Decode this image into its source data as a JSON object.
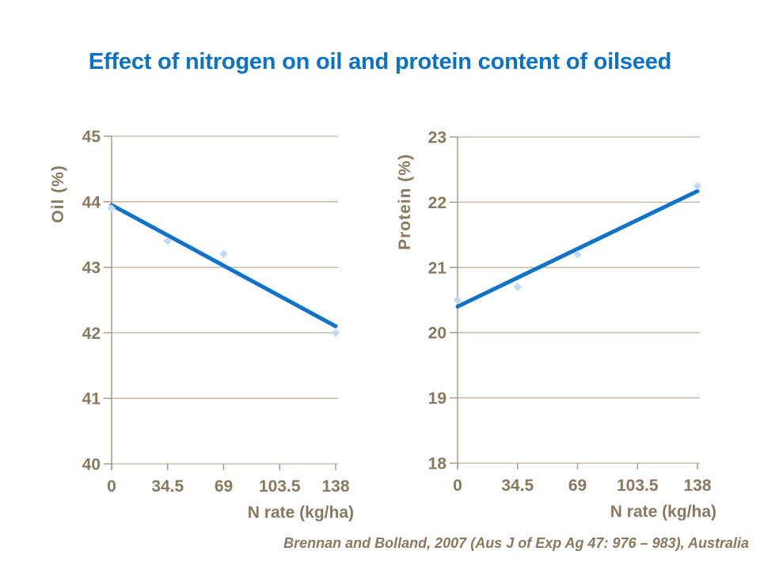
{
  "title": "Effect of nitrogen on oil and protein content of oilseed",
  "citation": "Brennan and Bolland, 2007 (Aus J of Exp Ag 47: 976 – 983), Australia",
  "colors": {
    "title": "#0b72c4",
    "trend_line": "#1173c8",
    "marker": "#c1daf2",
    "grid": "#bfb4a2",
    "axis": "#a2967e",
    "axis_text": "#87795f",
    "citation": "#87795f"
  },
  "chart_data": [
    {
      "type": "scatter",
      "title": "",
      "ylabel": "Oil (%)",
      "xlabel": "N rate (kg/ha)",
      "xlim": [
        0,
        138
      ],
      "ylim": [
        40,
        45
      ],
      "yticks": [
        40,
        41,
        42,
        43,
        44,
        45
      ],
      "xticks": [
        0,
        34.5,
        69,
        103.5,
        138
      ],
      "x_tick_labels": [
        "0",
        "34.5",
        "69",
        "103.5",
        "138"
      ],
      "grid": "horizontal",
      "legend": "none",
      "series": [
        {
          "name": "Oil",
          "points": [
            {
              "x": 0,
              "y": 43.9
            },
            {
              "x": 34.5,
              "y": 43.4
            },
            {
              "x": 69,
              "y": 43.2
            },
            {
              "x": 138,
              "y": 42.0
            }
          ]
        }
      ],
      "trendline": {
        "x": [
          0,
          138
        ],
        "y": [
          43.95,
          42.1
        ]
      }
    },
    {
      "type": "scatter",
      "title": "",
      "ylabel": "Protein (%)",
      "xlabel": "N rate (kg/ha)",
      "xlim": [
        0,
        138
      ],
      "ylim": [
        18,
        23
      ],
      "yticks": [
        18,
        19,
        20,
        21,
        22,
        23
      ],
      "xticks": [
        0,
        34.5,
        69,
        103.5,
        138
      ],
      "x_tick_labels": [
        "0",
        "34.5",
        "69",
        "103.5",
        "138"
      ],
      "grid": "horizontal",
      "legend": "none",
      "series": [
        {
          "name": "Protein",
          "points": [
            {
              "x": 0,
              "y": 20.5
            },
            {
              "x": 34.5,
              "y": 20.7
            },
            {
              "x": 69,
              "y": 21.2
            },
            {
              "x": 138,
              "y": 22.25
            }
          ]
        }
      ],
      "trendline": {
        "x": [
          0,
          138
        ],
        "y": [
          20.4,
          22.17
        ]
      }
    }
  ]
}
